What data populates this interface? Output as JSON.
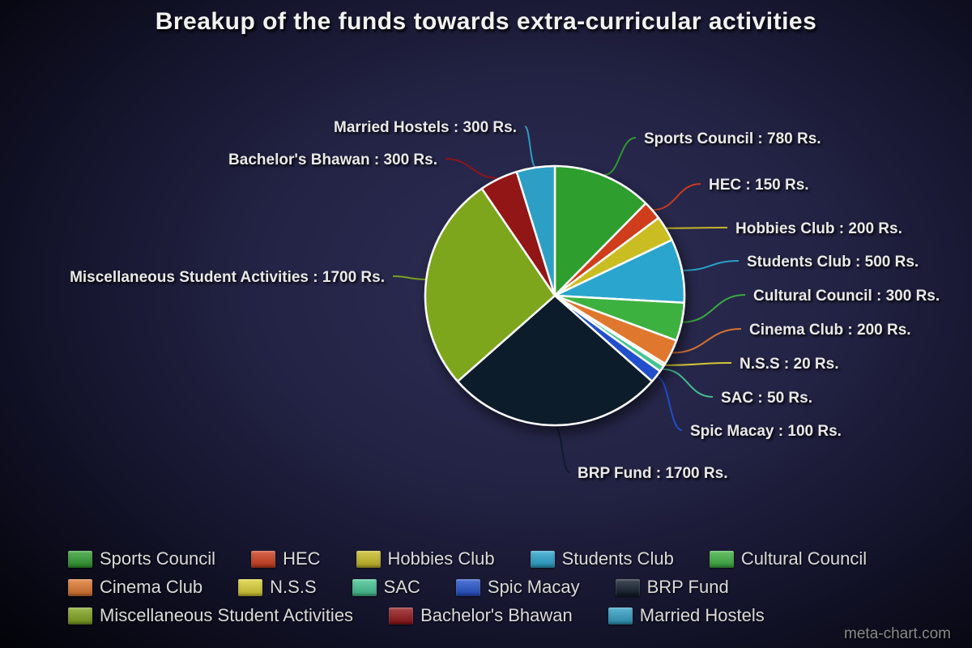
{
  "title": "Breakup of the funds towards extra-curricular activities",
  "watermark": "meta-chart.com",
  "chart_data": {
    "type": "pie",
    "title": "Breakup of the funds towards extra-curricular activities",
    "unit": "Rs.",
    "total": 6300,
    "start_angle_deg": 0,
    "direction": "clockwise",
    "legend_position": "bottom",
    "slices": [
      {
        "label": "Sports Council",
        "value": 780,
        "color": "#2f9e2f",
        "callout": "Sports Council : 780 Rs."
      },
      {
        "label": "HEC",
        "value": 150,
        "color": "#cf3c1c",
        "callout": "HEC : 150 Rs."
      },
      {
        "label": "Hobbies Club",
        "value": 200,
        "color": "#c9bd24",
        "callout": "Hobbies Club : 200 Rs."
      },
      {
        "label": "Students Club",
        "value": 500,
        "color": "#29a5cd",
        "callout": "Students Club : 500 Rs."
      },
      {
        "label": "Cultural Council",
        "value": 300,
        "color": "#3cb140",
        "callout": "Cultural Council : 300 Rs."
      },
      {
        "label": "Cinema Club",
        "value": 200,
        "color": "#e0772d",
        "callout": "Cinema Club : 200 Rs."
      },
      {
        "label": "N.S.S",
        "value": 20,
        "color": "#ddd133",
        "callout": "N.S.S : 20 Rs."
      },
      {
        "label": "SAC",
        "value": 50,
        "color": "#43c593",
        "callout": "SAC : 50 Rs."
      },
      {
        "label": "Spic Macay",
        "value": 100,
        "color": "#2150cc",
        "callout": "Spic Macay : 100 Rs."
      },
      {
        "label": "BRP Fund",
        "value": 1700,
        "color": "#0e1b29",
        "callout": "BRP Fund : 1700 Rs."
      },
      {
        "label": "Miscellaneous Student Activities",
        "value": 1700,
        "color": "#7ea61d",
        "callout": "Miscellaneous Student Activities : 1700 Rs."
      },
      {
        "label": "Bachelor's Bhawan",
        "value": 300,
        "color": "#931316",
        "callout": "Bachelor's Bhawan : 300 Rs."
      },
      {
        "label": "Married Hostels",
        "value": 300,
        "color": "#2f9fc4",
        "callout": "Married Hostels : 300 Rs."
      }
    ]
  }
}
